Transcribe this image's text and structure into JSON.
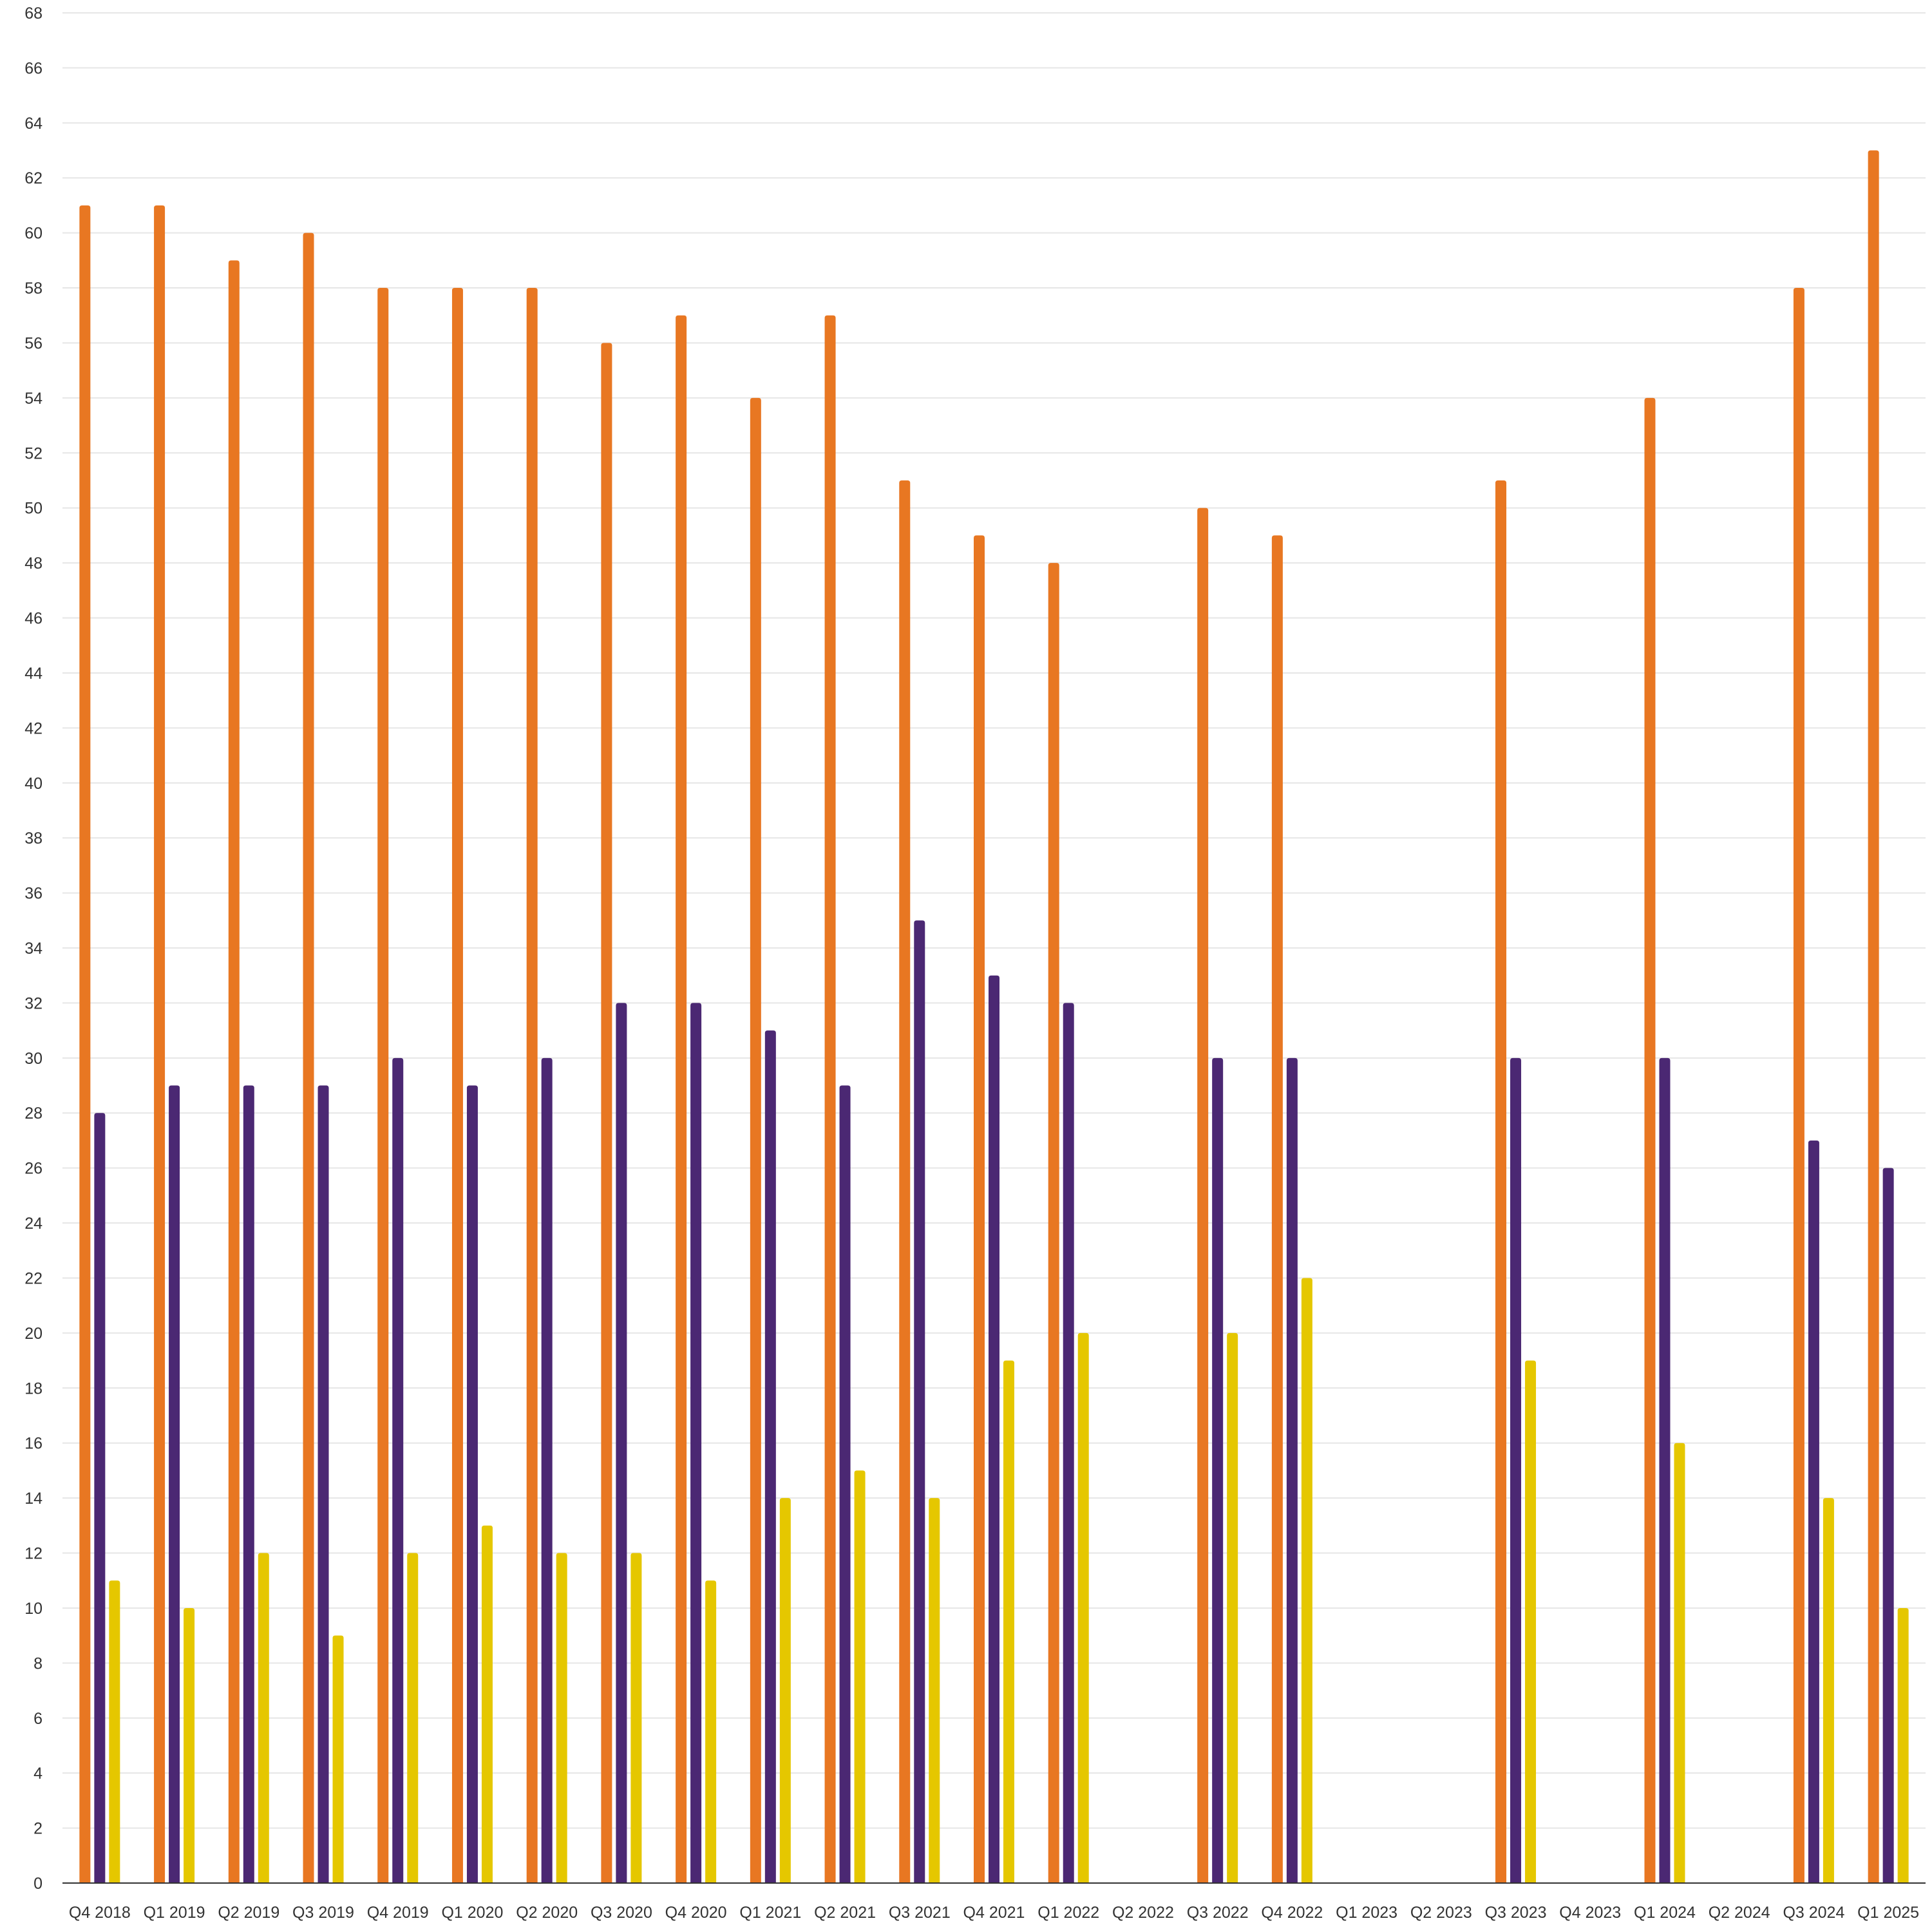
{
  "chart_data": {
    "type": "bar",
    "categories": [
      "Q4 2018",
      "Q1 2019",
      "Q2 2019",
      "Q3 2019",
      "Q4 2019",
      "Q1 2020",
      "Q2 2020",
      "Q3 2020",
      "Q4 2020",
      "Q1 2021",
      "Q2 2021",
      "Q3 2021",
      "Q4 2021",
      "Q1 2022",
      "Q2 2022",
      "Q3 2022",
      "Q4 2022",
      "Q1 2023",
      "Q2 2023",
      "Q3 2023",
      "Q4 2023",
      "Q1 2024",
      "Q2 2024",
      "Q3 2024",
      "Q1 2025"
    ],
    "series": [
      {
        "color": "#e87722",
        "values": [
          61,
          61,
          59,
          60,
          58,
          58,
          58,
          56,
          57,
          54,
          57,
          51,
          49,
          48,
          null,
          50,
          49,
          null,
          null,
          51,
          null,
          54,
          null,
          58,
          63
        ]
      },
      {
        "color": "#4b2873",
        "values": [
          28,
          29,
          29,
          29,
          30,
          29,
          30,
          32,
          32,
          31,
          29,
          35,
          33,
          32,
          null,
          30,
          30,
          null,
          null,
          30,
          null,
          30,
          null,
          27,
          26
        ]
      },
      {
        "color": "#e5c700",
        "values": [
          11,
          10,
          12,
          9,
          12,
          13,
          12,
          12,
          11,
          14,
          15,
          14,
          19,
          20,
          null,
          20,
          22,
          null,
          null,
          19,
          null,
          16,
          null,
          14,
          10
        ]
      }
    ],
    "title": "",
    "xlabel": "",
    "ylabel": "",
    "ylim": [
      0,
      68
    ],
    "ytick_step": 2,
    "grid": true,
    "legend": "none"
  }
}
